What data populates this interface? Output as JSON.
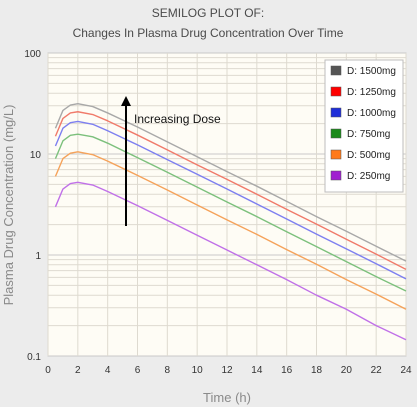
{
  "chart_data": {
    "type": "line",
    "title": "SEMILOG PLOT OF:",
    "subtitle": "Changes In Plasma Drug Concentration Over Time",
    "xlabel": "Time  (h)",
    "ylabel": "Plasma Drug Concentration  (mg/L)",
    "xlim": [
      0,
      24
    ],
    "ylim": [
      0.1,
      100
    ],
    "yscale": "log",
    "x_ticks": [
      "0",
      "2",
      "4",
      "6",
      "8",
      "10",
      "12",
      "14",
      "16",
      "18",
      "20",
      "22",
      "24"
    ],
    "y_ticks": [
      "0.1",
      "1",
      "10",
      "100"
    ],
    "grid": true,
    "legend_position": "top-right",
    "annotation": "Increasing Dose",
    "x": [
      0,
      0.5,
      1,
      1.5,
      2,
      3,
      4,
      6,
      8,
      10,
      12,
      14,
      16,
      18,
      20,
      22,
      24
    ],
    "series": [
      {
        "name": "D: 1500mg",
        "color": "#555555",
        "line_color": "#a8a8a8",
        "values": [
          0,
          18,
          27,
          30.5,
          31.5,
          29.5,
          25.5,
          18.5,
          13.2,
          9.4,
          6.7,
          4.8,
          3.4,
          2.4,
          1.72,
          1.22,
          0.87
        ]
      },
      {
        "name": "D: 1250mg",
        "color": "#ff0000",
        "line_color": "#f07a6a",
        "values": [
          0,
          15,
          22.5,
          25.5,
          26.2,
          24.6,
          21.3,
          15.4,
          11,
          7.8,
          5.6,
          4,
          2.83,
          2.02,
          1.43,
          1.02,
          0.72
        ]
      },
      {
        "name": "D: 1000mg",
        "color": "#1f2fd8",
        "line_color": "#7d7ff0",
        "values": [
          0,
          12,
          18,
          20.4,
          21,
          19.7,
          17,
          12.3,
          8.8,
          6.3,
          4.5,
          3.2,
          2.27,
          1.61,
          1.15,
          0.82,
          0.58
        ]
      },
      {
        "name": "D: 750mg",
        "color": "#1a8a1a",
        "line_color": "#7cc07c",
        "values": [
          0,
          9,
          13.5,
          15.3,
          15.7,
          14.8,
          12.8,
          9.2,
          6.6,
          4.7,
          3.35,
          2.4,
          1.7,
          1.21,
          0.86,
          0.61,
          0.44
        ]
      },
      {
        "name": "D: 500mg",
        "color": "#ff7a1a",
        "line_color": "#f5a25a",
        "values": [
          0,
          6,
          9,
          10.2,
          10.5,
          9.85,
          8.5,
          6.15,
          4.4,
          3.13,
          2.23,
          1.6,
          1.13,
          0.81,
          0.57,
          0.41,
          0.29
        ]
      },
      {
        "name": "D: 250mg",
        "color": "#a020d0",
        "line_color": "#c070e8",
        "values": [
          0,
          3,
          4.5,
          5.1,
          5.25,
          4.93,
          4.25,
          3.08,
          2.2,
          1.57,
          1.12,
          0.8,
          0.57,
          0.4,
          0.29,
          0.2,
          0.145
        ]
      }
    ]
  }
}
